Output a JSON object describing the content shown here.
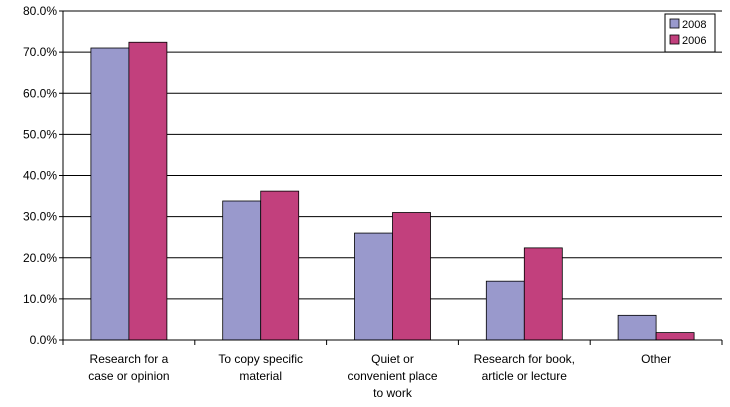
{
  "chart_data": {
    "type": "bar",
    "categories": [
      [
        "Research for a",
        "case or opinion"
      ],
      [
        "To copy specific",
        "material"
      ],
      [
        "Quiet or",
        "convenient place",
        "to work"
      ],
      [
        "Research for book,",
        "article or lecture"
      ],
      [
        "Other"
      ]
    ],
    "series": [
      {
        "name": "2008",
        "values": [
          71.0,
          33.8,
          26.0,
          14.3,
          6.0
        ],
        "color": "#9999cc"
      },
      {
        "name": "2006",
        "values": [
          72.4,
          36.2,
          31.0,
          22.4,
          1.8
        ],
        "color": "#c2407d"
      }
    ],
    "ylim": [
      0,
      80
    ],
    "yticks": [
      "0.0%",
      "10.0%",
      "20.0%",
      "30.0%",
      "40.0%",
      "50.0%",
      "60.0%",
      "70.0%",
      "80.0%"
    ],
    "title": "",
    "xlabel": "",
    "ylabel": "",
    "grid": true,
    "legend": "top-right"
  }
}
